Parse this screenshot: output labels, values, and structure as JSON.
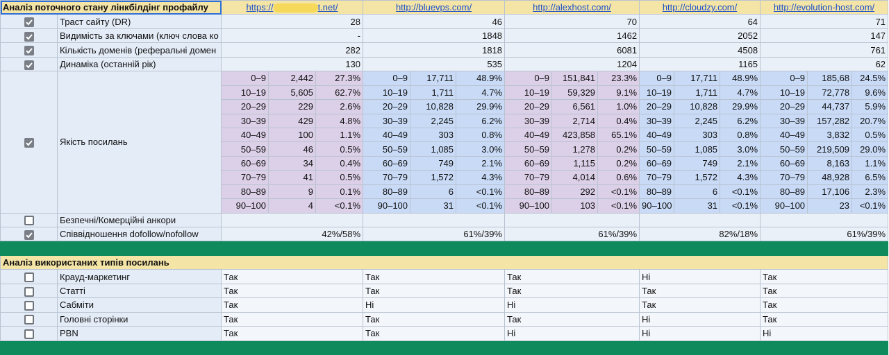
{
  "header": {
    "title": "Аналіз поточного стану лінкбілдінг профайлу",
    "sites": [
      [
        "https://",
        "t.net/"
      ],
      [
        "http://bluevps.com/"
      ],
      [
        "http://alexhost.com/"
      ],
      [
        "http://cloudzy.com/"
      ],
      [
        "http://evolution-host.com/"
      ]
    ]
  },
  "metrics": [
    {
      "label": "Траст сайту (DR)",
      "checked": true,
      "values": [
        "28",
        "46",
        "70",
        "64",
        "71"
      ]
    },
    {
      "label": "Видимість за ключами (ключ слова ко",
      "checked": true,
      "values": [
        "-",
        "1848",
        "1462",
        "2052",
        "147"
      ]
    },
    {
      "label": "Кількість доменів  (реферальні домен",
      "checked": true,
      "values": [
        "282",
        "1818",
        "6081",
        "4508",
        "761"
      ]
    },
    {
      "label": "Динаміка (останній рік)",
      "checked": true,
      "values": [
        "130",
        "535",
        "1204",
        "1165",
        "62"
      ]
    }
  ],
  "link_quality": {
    "label": "Якість посилань",
    "checked": true,
    "ranges": [
      "0–9",
      "10–19",
      "20–29",
      "30–39",
      "40–49",
      "50–59",
      "60–69",
      "70–79",
      "80–89",
      "90–100"
    ],
    "sites": [
      {
        "counts": [
          "2,442",
          "5,605",
          "229",
          "429",
          "100",
          "46",
          "34",
          "41",
          "9",
          "4"
        ],
        "shares": [
          "27.3%",
          "62.7%",
          "2.6%",
          "4.8%",
          "1.1%",
          "0.5%",
          "0.4%",
          "0.5%",
          "0.1%",
          "<0.1%"
        ]
      },
      {
        "counts": [
          "17,711",
          "1,711",
          "10,828",
          "2,245",
          "303",
          "1,085",
          "749",
          "1,572",
          "6",
          "31"
        ],
        "shares": [
          "48.9%",
          "4.7%",
          "29.9%",
          "6.2%",
          "0.8%",
          "3.0%",
          "2.1%",
          "4.3%",
          "<0.1%",
          "<0.1%"
        ]
      },
      {
        "counts": [
          "151,841",
          "59,329",
          "6,561",
          "2,714",
          "423,858",
          "1,278",
          "1,115",
          "4,014",
          "292",
          "103"
        ],
        "shares": [
          "23.3%",
          "9.1%",
          "1.0%",
          "0.4%",
          "65.1%",
          "0.2%",
          "0.2%",
          "0.6%",
          "<0.1%",
          "<0.1%"
        ]
      },
      {
        "counts": [
          "17,711",
          "1,711",
          "10,828",
          "2,245",
          "303",
          "1,085",
          "749",
          "1,572",
          "6",
          "31"
        ],
        "shares": [
          "48.9%",
          "4.7%",
          "29.9%",
          "6.2%",
          "0.8%",
          "3.0%",
          "2.1%",
          "4.3%",
          "<0.1%",
          "<0.1%"
        ]
      },
      {
        "counts": [
          "185,68",
          "72,778",
          "44,737",
          "157,282",
          "3,832",
          "219,509",
          "8,163",
          "48,928",
          "17,106",
          "23"
        ],
        "shares": [
          "24.5%",
          "9.6%",
          "5.9%",
          "20.7%",
          "0.5%",
          "29.0%",
          "1.1%",
          "6.5%",
          "2.3%",
          "<0.1%"
        ]
      }
    ]
  },
  "anchors": {
    "label": "Безпечні/Комерційні анкори",
    "checked": false
  },
  "ratio": {
    "label": "Співвідношення dofollow/nofollow",
    "checked": true,
    "values": [
      "42%/58%",
      "61%/39%",
      "61%/39%",
      "82%/18%",
      "61%/39%"
    ]
  },
  "section2": {
    "title": "Аналіз використаних типів посилань",
    "rows": [
      {
        "label": "Крауд-маркетинг",
        "checked": false,
        "answers": [
          "Так",
          "Так",
          "Так",
          "Ні",
          "Так"
        ]
      },
      {
        "label": "Статті",
        "checked": false,
        "answers": [
          "Так",
          "Так",
          "Так",
          "Так",
          "Так"
        ]
      },
      {
        "label": "Сабміти",
        "checked": false,
        "answers": [
          "Так",
          "Ні",
          "Ні",
          "Так",
          "Так"
        ]
      },
      {
        "label": "Головні сторінки",
        "checked": false,
        "answers": [
          "Так",
          "Так",
          "Так",
          "Ні",
          "Так"
        ]
      },
      {
        "label": "PBN",
        "checked": false,
        "answers": [
          "Так",
          "Так",
          "Ні",
          "Ні",
          "Ні"
        ]
      }
    ]
  }
}
